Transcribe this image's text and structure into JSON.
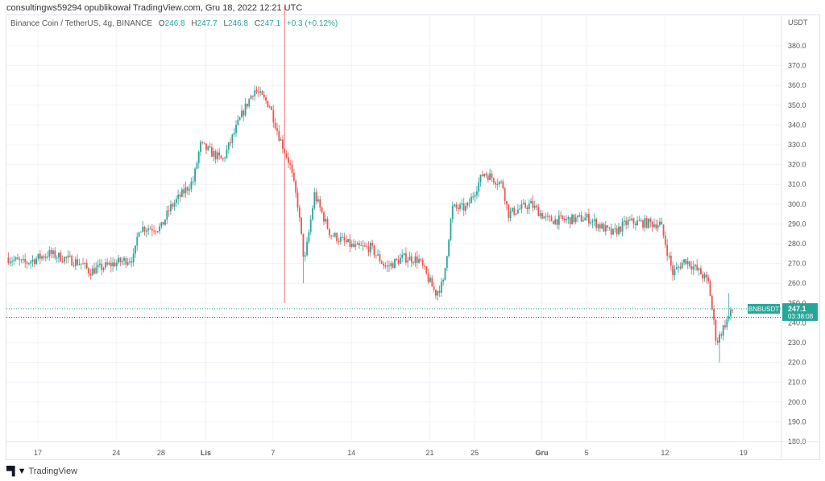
{
  "header": {
    "published": "consultingws59294 opublikował TradingView.com, Gru 18, 2022 12:21 UTC"
  },
  "legend": {
    "symbol": "Binance Coin / TetherUS, 4g, BINANCE",
    "o_label": "O",
    "o": "246.8",
    "h_label": "H",
    "h": "247.7",
    "l_label": "L",
    "l": "246.8",
    "c_label": "C",
    "c": "247.1",
    "change": "+0.3 (+0.12%)"
  },
  "footer": {
    "brand": "TradingView",
    "logo_mark": "TV"
  },
  "colors": {
    "up": "#26a69a",
    "down": "#ef5350",
    "grid": "#f0f3fa",
    "axis_text": "#555"
  },
  "chart_data": {
    "type": "candlestick",
    "title": "Binance Coin / TetherUS, 4g, BINANCE",
    "currency": "USDT",
    "ylim": [
      180,
      380
    ],
    "yticks": [
      180,
      190,
      200,
      210,
      220,
      230,
      240,
      250,
      260,
      270,
      280,
      290,
      300,
      310,
      320,
      330,
      340,
      350,
      360,
      370,
      380
    ],
    "xticks": [
      "17",
      "24",
      "28",
      "Lis",
      "7",
      "14",
      "21",
      "25",
      "Gru",
      "5",
      "12",
      "19"
    ],
    "xtick_days": [
      0,
      7,
      11,
      15,
      21,
      28,
      35,
      39,
      45,
      49,
      56,
      63
    ],
    "candle_interval_hours": 4,
    "close_path_day_price": [
      [
        -2.8,
        273
      ],
      [
        -1.2,
        270
      ],
      [
        1,
        275
      ],
      [
        3.9,
        270
      ],
      [
        4.6,
        266
      ],
      [
        6.8,
        270
      ],
      [
        8.6,
        273
      ],
      [
        9,
        288
      ],
      [
        11,
        288
      ],
      [
        11.8,
        298
      ],
      [
        13.9,
        312
      ],
      [
        14.5,
        330
      ],
      [
        16.5,
        322
      ],
      [
        18.2,
        345
      ],
      [
        19.3,
        358
      ],
      [
        20.7,
        350
      ],
      [
        21.5,
        335
      ],
      [
        22.5,
        320
      ],
      [
        23.2,
        300
      ],
      [
        23.8,
        270
      ],
      [
        24.7,
        305
      ],
      [
        26.1,
        285
      ],
      [
        28.3,
        278
      ],
      [
        29.7,
        278
      ],
      [
        31.1,
        268
      ],
      [
        32.6,
        273
      ],
      [
        34,
        272
      ],
      [
        35.5,
        255
      ],
      [
        36.2,
        260
      ],
      [
        37,
        298
      ],
      [
        38.3,
        298
      ],
      [
        39.8,
        316
      ],
      [
        41.5,
        310
      ],
      [
        42,
        295
      ],
      [
        44,
        300
      ],
      [
        45.5,
        292
      ],
      [
        47,
        292
      ],
      [
        49.1,
        293
      ],
      [
        51.3,
        285
      ],
      [
        52.7,
        291
      ],
      [
        55.6,
        290
      ],
      [
        56.7,
        265
      ],
      [
        57.8,
        272
      ],
      [
        59.2,
        265
      ],
      [
        59.9,
        260
      ],
      [
        60.6,
        230
      ],
      [
        61.4,
        240
      ],
      [
        62.1,
        247
      ]
    ],
    "extremes": [
      {
        "day": 22.1,
        "high": 400,
        "low": 250
      },
      {
        "day": 23.7,
        "low": 260
      },
      {
        "day": 60.9,
        "low": 220
      },
      {
        "day": 61.7,
        "high": 255
      }
    ],
    "last_price": {
      "symbol": "BNBUSDT",
      "price": "247.1",
      "countdown": "03:38:08",
      "value": 247.1
    },
    "ref_line": 242.8
  }
}
